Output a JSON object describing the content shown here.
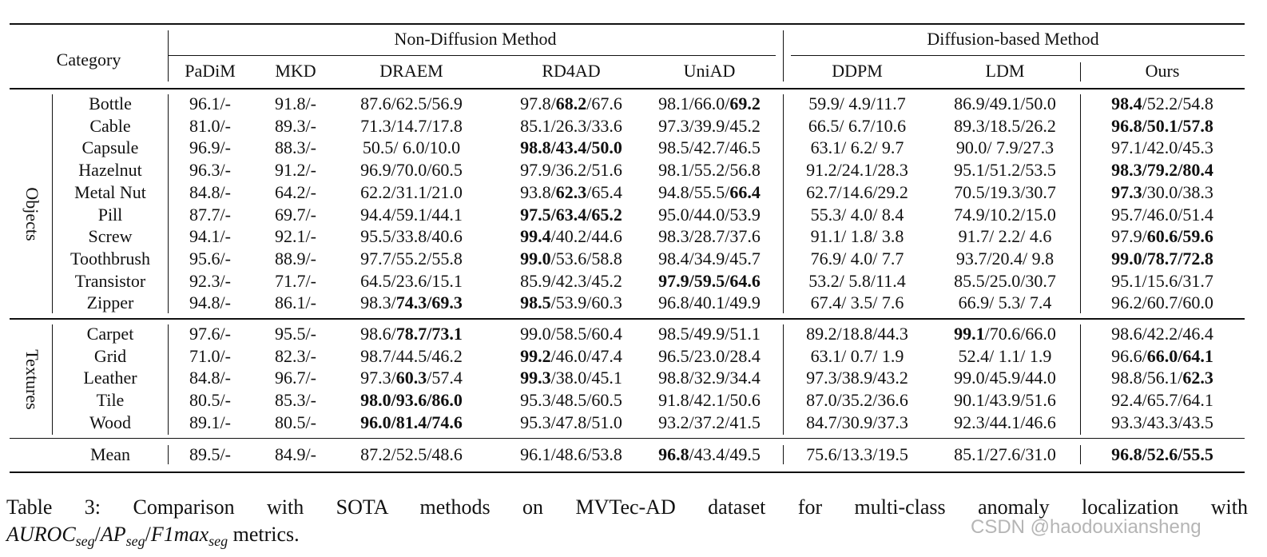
{
  "table": {
    "header": {
      "category": "Category",
      "groups": [
        "Non-Diffusion Method",
        "Diffusion-based Method"
      ],
      "methods": [
        "PaDiM",
        "MKD",
        "DRAEM",
        "RD4AD",
        "UniAD",
        "DDPM",
        "LDM",
        "Ours"
      ]
    },
    "sections": [
      {
        "label": "Objects",
        "rows": [
          {
            "category": "Bottle",
            "cells": [
              [
                "96.1/-"
              ],
              [
                "91.8/-"
              ],
              [
                "87.6/62.5/56.9"
              ],
              [
                "97.8/",
                {
                  "bold": "68.2"
                },
                "/67.6"
              ],
              [
                "98.1/66.0/",
                {
                  "bold": "69.2"
                }
              ],
              [
                "59.9/ 4.9/11.7"
              ],
              [
                "86.9/49.1/50.0"
              ],
              [
                {
                  "bold": "98.4"
                },
                "/52.2/54.8"
              ]
            ]
          },
          {
            "category": "Cable",
            "cells": [
              [
                "81.0/-"
              ],
              [
                "89.3/-"
              ],
              [
                "71.3/14.7/17.8"
              ],
              [
                "85.1/26.3/33.6"
              ],
              [
                "97.3/39.9/45.2"
              ],
              [
                "66.5/ 6.7/10.6"
              ],
              [
                "89.3/18.5/26.2"
              ],
              [
                {
                  "bold": "96.8/50.1/57.8"
                }
              ]
            ]
          },
          {
            "category": "Capsule",
            "cells": [
              [
                "96.9/-"
              ],
              [
                "88.3/-"
              ],
              [
                "50.5/ 6.0/10.0"
              ],
              [
                {
                  "bold": "98.8/43.4/50.0"
                }
              ],
              [
                "98.5/42.7/46.5"
              ],
              [
                "63.1/ 6.2/ 9.7"
              ],
              [
                "90.0/ 7.9/27.3"
              ],
              [
                "97.1/42.0/45.3"
              ]
            ]
          },
          {
            "category": "Hazelnut",
            "cells": [
              [
                "96.3/-"
              ],
              [
                "91.2/-"
              ],
              [
                "96.9/70.0/60.5"
              ],
              [
                "97.9/36.2/51.6"
              ],
              [
                "98.1/55.2/56.8"
              ],
              [
                "91.2/24.1/28.3"
              ],
              [
                "95.1/51.2/53.5"
              ],
              [
                {
                  "bold": "98.3/79.2/80.4"
                }
              ]
            ]
          },
          {
            "category": "Metal Nut",
            "cells": [
              [
                "84.8/-"
              ],
              [
                "64.2/-"
              ],
              [
                "62.2/31.1/21.0"
              ],
              [
                "93.8/",
                {
                  "bold": "62.3"
                },
                "/65.4"
              ],
              [
                "94.8/55.5/",
                {
                  "bold": "66.4"
                }
              ],
              [
                "62.7/14.6/29.2"
              ],
              [
                "70.5/19.3/30.7"
              ],
              [
                {
                  "bold": "97.3"
                },
                "/30.0/38.3"
              ]
            ]
          },
          {
            "category": "Pill",
            "cells": [
              [
                "87.7/-"
              ],
              [
                "69.7/-"
              ],
              [
                "94.4/59.1/44.1"
              ],
              [
                {
                  "bold": "97.5/63.4/65.2"
                }
              ],
              [
                "95.0/44.0/53.9"
              ],
              [
                "55.3/ 4.0/ 8.4"
              ],
              [
                "74.9/10.2/15.0"
              ],
              [
                "95.7/46.0/51.4"
              ]
            ]
          },
          {
            "category": "Screw",
            "cells": [
              [
                "94.1/-"
              ],
              [
                "92.1/-"
              ],
              [
                "95.5/33.8/40.6"
              ],
              [
                {
                  "bold": "99.4"
                },
                "/40.2/44.6"
              ],
              [
                "98.3/28.7/37.6"
              ],
              [
                "91.1/ 1.8/ 3.8"
              ],
              [
                "91.7/ 2.2/ 4.6"
              ],
              [
                "97.9/",
                {
                  "bold": "60.6/59.6"
                }
              ]
            ]
          },
          {
            "category": "Toothbrush",
            "cells": [
              [
                "95.6/-"
              ],
              [
                "88.9/-"
              ],
              [
                "97.7/55.2/55.8"
              ],
              [
                {
                  "bold": "99.0"
                },
                "/53.6/58.8"
              ],
              [
                "98.4/34.9/45.7"
              ],
              [
                "76.9/ 4.0/ 7.7"
              ],
              [
                "93.7/20.4/ 9.8"
              ],
              [
                {
                  "bold": "99.0/78.7/72.8"
                }
              ]
            ]
          },
          {
            "category": "Transistor",
            "cells": [
              [
                "92.3/-"
              ],
              [
                "71.7/-"
              ],
              [
                "64.5/23.6/15.1"
              ],
              [
                "85.9/42.3/45.2"
              ],
              [
                {
                  "bold": "97.9/59.5/64.6"
                }
              ],
              [
                "53.2/ 5.8/11.4"
              ],
              [
                "85.5/25.0/30.7"
              ],
              [
                "95.1/15.6/31.7"
              ]
            ]
          },
          {
            "category": "Zipper",
            "cells": [
              [
                "94.8/-"
              ],
              [
                "86.1/-"
              ],
              [
                "98.3/",
                {
                  "bold": "74.3/69.3"
                }
              ],
              [
                {
                  "bold": "98.5"
                },
                "/53.9/60.3"
              ],
              [
                "96.8/40.1/49.9"
              ],
              [
                "67.4/ 3.5/ 7.6"
              ],
              [
                "66.9/ 5.3/ 7.4"
              ],
              [
                "96.2/60.7/60.0"
              ]
            ]
          }
        ]
      },
      {
        "label": "Textures",
        "rows": [
          {
            "category": "Carpet",
            "cells": [
              [
                "97.6/-"
              ],
              [
                "95.5/-"
              ],
              [
                "98.6/",
                {
                  "bold": "78.7/73.1"
                }
              ],
              [
                "99.0/58.5/60.4"
              ],
              [
                "98.5/49.9/51.1"
              ],
              [
                "89.2/18.8/44.3"
              ],
              [
                {
                  "bold": "99.1"
                },
                "/70.6/66.0"
              ],
              [
                "98.6/42.2/46.4"
              ]
            ]
          },
          {
            "category": "Grid",
            "cells": [
              [
                "71.0/-"
              ],
              [
                "82.3/-"
              ],
              [
                "98.7/44.5/46.2"
              ],
              [
                {
                  "bold": "99.2"
                },
                "/46.0/47.4"
              ],
              [
                "96.5/23.0/28.4"
              ],
              [
                "63.1/ 0.7/ 1.9"
              ],
              [
                "52.4/ 1.1/ 1.9"
              ],
              [
                "96.6/",
                {
                  "bold": "66.0/64.1"
                }
              ]
            ]
          },
          {
            "category": "Leather",
            "cells": [
              [
                "84.8/-"
              ],
              [
                "96.7/-"
              ],
              [
                "97.3/",
                {
                  "bold": "60.3"
                },
                "/57.4"
              ],
              [
                {
                  "bold": "99.3"
                },
                "/38.0/45.1"
              ],
              [
                "98.8/32.9/34.4"
              ],
              [
                "97.3/38.9/43.2"
              ],
              [
                "99.0/45.9/44.0"
              ],
              [
                "98.8/56.1/",
                {
                  "bold": "62.3"
                }
              ]
            ]
          },
          {
            "category": "Tile",
            "cells": [
              [
                "80.5/-"
              ],
              [
                "85.3/-"
              ],
              [
                {
                  "bold": "98.0/93.6/86.0"
                }
              ],
              [
                "95.3/48.5/60.5"
              ],
              [
                "91.8/42.1/50.6"
              ],
              [
                "87.0/35.2/36.6"
              ],
              [
                "90.1/43.9/51.6"
              ],
              [
                "92.4/65.7/64.1"
              ]
            ]
          },
          {
            "category": "Wood",
            "cells": [
              [
                "89.1/-"
              ],
              [
                "80.5/-"
              ],
              [
                {
                  "bold": "96.0/81.4/74.6"
                }
              ],
              [
                "95.3/47.8/51.0"
              ],
              [
                "93.2/37.2/41.5"
              ],
              [
                "84.7/30.9/37.3"
              ],
              [
                "92.3/44.1/46.6"
              ],
              [
                "93.3/43.3/43.5"
              ]
            ]
          }
        ]
      }
    ],
    "mean": {
      "category": "Mean",
      "cells": [
        [
          "89.5/-"
        ],
        [
          "84.9/-"
        ],
        [
          "87.2/52.5/48.6"
        ],
        [
          "96.1/48.6/53.8"
        ],
        [
          {
            "bold": "96.8"
          },
          "/43.4/49.5"
        ],
        [
          "75.6/13.3/19.5"
        ],
        [
          "85.1/27.6/31.0"
        ],
        [
          {
            "bold": "96.8/52.6/55.5"
          }
        ]
      ]
    }
  },
  "caption": {
    "line": "Table 3: Comparison with SOTA methods on MVTec-AD dataset for multi-class anomaly localization with",
    "math": {
      "terms": [
        {
          "name": "AUROC",
          "sub": "seg"
        },
        {
          "name": "AP",
          "sub": "seg"
        },
        {
          "name": "F1max",
          "sub": "seg"
        }
      ],
      "separator": "/"
    },
    "end": " metrics."
  },
  "watermark": "CSDN @haodouxiansheng"
}
